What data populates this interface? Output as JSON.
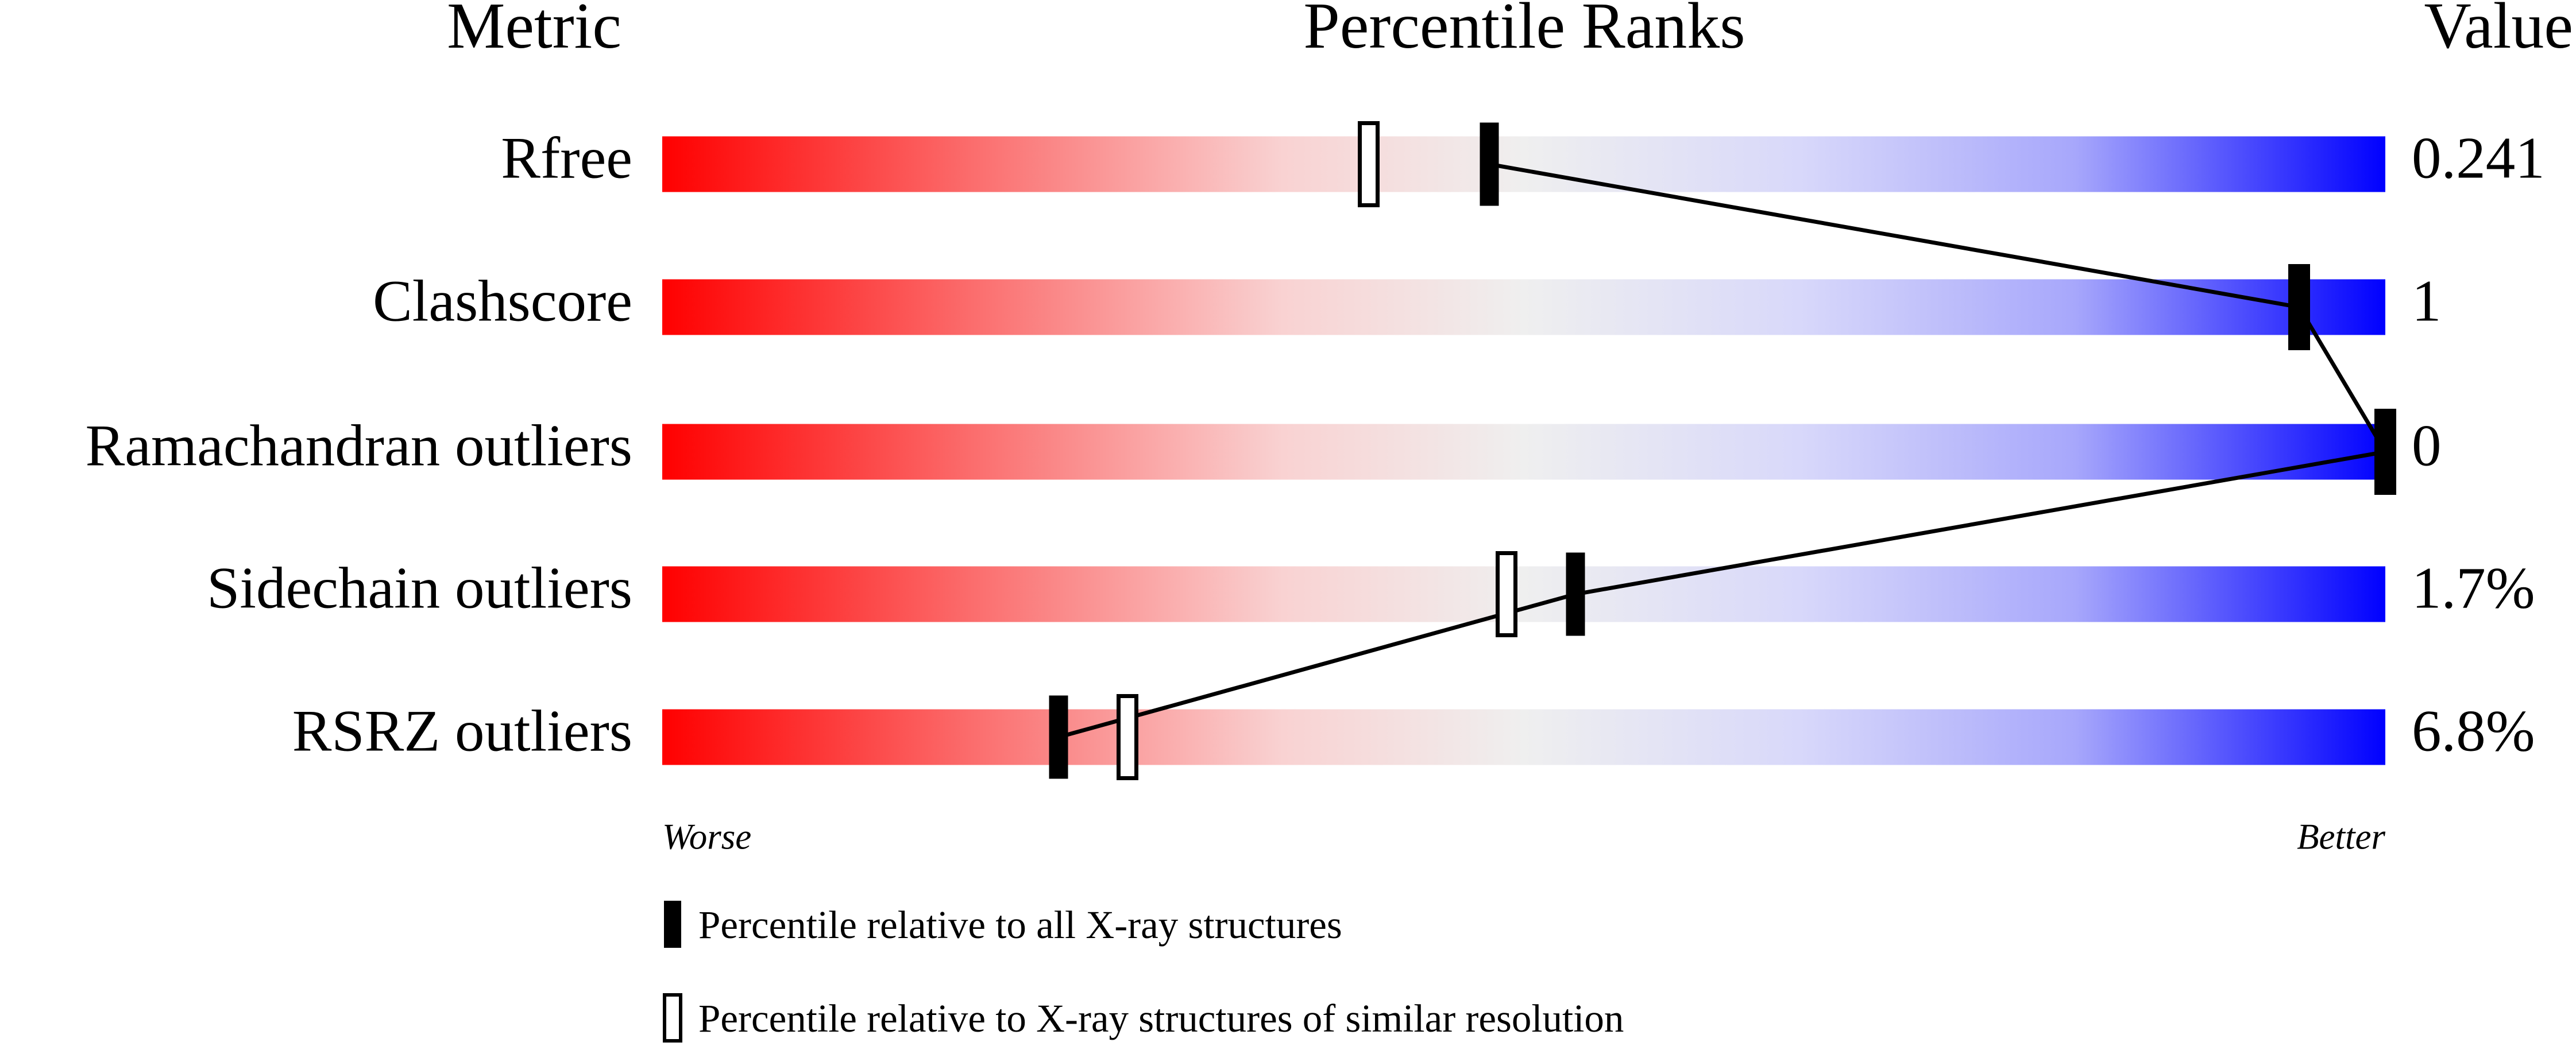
{
  "chart_data": {
    "type": "percentile-slider",
    "headers": [
      "Metric",
      "Percentile Ranks",
      "Value"
    ],
    "categories": [
      "Rfree",
      "Clashscore",
      "Ramachandran outliers",
      "Sidechain outliers",
      "RSRZ outliers"
    ],
    "metric_values": [
      0.241,
      1,
      0,
      1.7,
      6.8
    ],
    "metric_value_labels": [
      "0.241",
      "1",
      "0",
      "1.7%",
      "6.8%"
    ],
    "series": [
      {
        "name": "Percentile relative to all X-ray structures",
        "color": "#000000",
        "style": "filled",
        "values": [
          48,
          95,
          100,
          53,
          23
        ]
      },
      {
        "name": "Percentile relative to X-ray structures of similar resolution",
        "color": "#000000",
        "style": "open",
        "values": [
          41,
          95,
          100,
          49,
          27
        ]
      }
    ],
    "xlim": [
      0,
      100
    ],
    "scale_labels": [
      "Worse",
      "Better"
    ]
  }
}
